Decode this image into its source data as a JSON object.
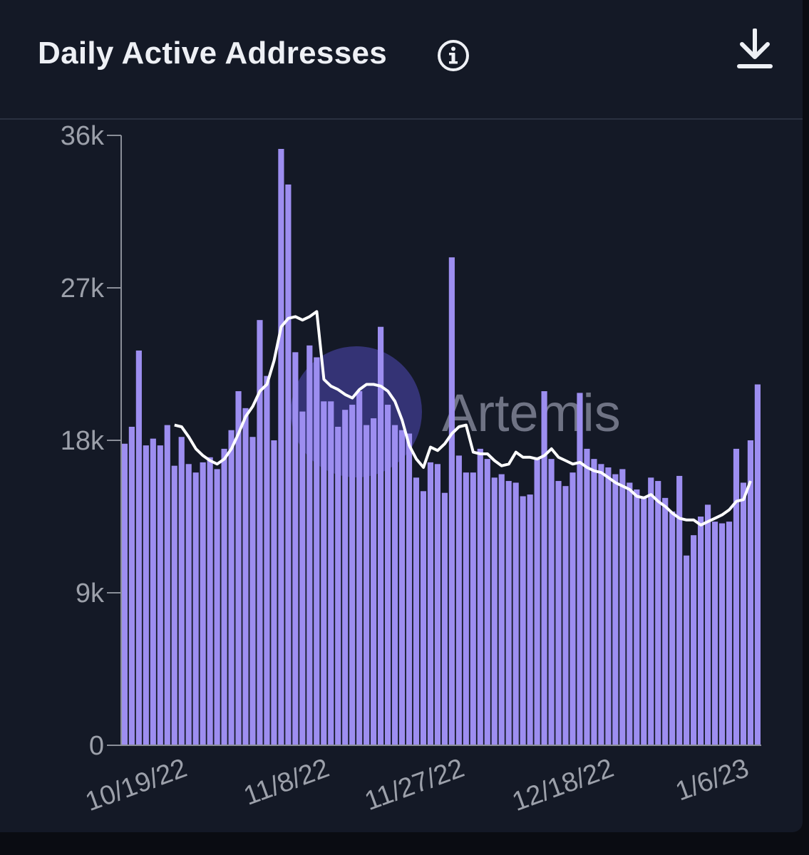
{
  "header": {
    "title": "Daily Active Addresses",
    "info_icon": "info-circle-icon",
    "download_icon": "download-icon"
  },
  "watermark": {
    "text": "Artemis"
  },
  "colors": {
    "bar": "#9d8ef0",
    "line": "#ffffff",
    "background": "#141926",
    "axis": "#8a8e98"
  },
  "chart_data": {
    "type": "bar",
    "title": "Daily Active Addresses",
    "ylim": [
      0,
      36000
    ],
    "yticks": [
      {
        "value": 0,
        "label": "0"
      },
      {
        "value": 9000,
        "label": "9k"
      },
      {
        "value": 18000,
        "label": "18k"
      },
      {
        "value": 27000,
        "label": "27k"
      },
      {
        "value": 36000,
        "label": "36k"
      }
    ],
    "xticks": [
      {
        "value": "10/19/22",
        "label": "10/19/22"
      },
      {
        "value": "11/8/22",
        "label": "11/8/22"
      },
      {
        "value": "11/27/22",
        "label": "11/27/22"
      },
      {
        "value": "12/18/22",
        "label": "12/18/22"
      },
      {
        "value": "1/6/23",
        "label": "1/6/23"
      }
    ],
    "grid": false,
    "legend": "none",
    "x": [
      "10/10/22",
      "10/11/22",
      "10/12/22",
      "10/13/22",
      "10/14/22",
      "10/15/22",
      "10/16/22",
      "10/17/22",
      "10/18/22",
      "10/19/22",
      "10/20/22",
      "10/21/22",
      "10/22/22",
      "10/23/22",
      "10/24/22",
      "10/25/22",
      "10/26/22",
      "10/27/22",
      "10/28/22",
      "10/29/22",
      "10/30/22",
      "10/31/22",
      "11/1/22",
      "11/2/22",
      "11/3/22",
      "11/4/22",
      "11/5/22",
      "11/6/22",
      "11/7/22",
      "11/8/22",
      "11/9/22",
      "11/10/22",
      "11/11/22",
      "11/12/22",
      "11/13/22",
      "11/14/22",
      "11/15/22",
      "11/16/22",
      "11/17/22",
      "11/18/22",
      "11/19/22",
      "11/20/22",
      "11/21/22",
      "11/22/22",
      "11/23/22",
      "11/24/22",
      "11/25/22",
      "11/26/22",
      "11/27/22",
      "11/28/22",
      "11/29/22",
      "11/30/22",
      "12/1/22",
      "12/2/22",
      "12/3/22",
      "12/4/22",
      "12/5/22",
      "12/6/22",
      "12/7/22",
      "12/8/22",
      "12/9/22",
      "12/10/22",
      "12/11/22",
      "12/12/22",
      "12/13/22",
      "12/14/22",
      "12/15/22",
      "12/16/22",
      "12/17/22",
      "12/18/22",
      "12/19/22",
      "12/20/22",
      "12/21/22",
      "12/22/22",
      "12/23/22",
      "12/24/22",
      "12/25/22",
      "12/26/22",
      "12/27/22",
      "12/28/22",
      "12/29/22",
      "12/30/22",
      "12/31/22",
      "1/1/23",
      "1/2/23",
      "1/3/23",
      "1/4/23",
      "1/5/23",
      "1/6/23",
      "1/7/23"
    ],
    "series": [
      {
        "type": "bar",
        "values": [
          17800,
          18800,
          23300,
          17700,
          18100,
          17700,
          18900,
          16500,
          18200,
          16600,
          16100,
          16700,
          17000,
          16300,
          17500,
          18600,
          20900,
          19900,
          18200,
          25100,
          21800,
          18000,
          35200,
          33100,
          23200,
          19700,
          23600,
          22900,
          20300,
          20300,
          18800,
          19800,
          20100,
          20900,
          18900,
          19300,
          24700,
          20100,
          18900,
          18600,
          18400,
          15800,
          15000,
          16700,
          16600,
          14900,
          28800,
          17100,
          16100,
          16100,
          17500,
          16900,
          15800,
          16000,
          15600,
          15500,
          14700,
          14800,
          17000,
          20900,
          16900,
          15600,
          15300,
          16100,
          20800,
          17500,
          16900,
          16600,
          16400,
          16000,
          16300,
          15500,
          15100,
          14600,
          15800,
          15600,
          14600,
          13800,
          15900,
          11200,
          12400,
          13500,
          14200,
          13200,
          13100,
          13200,
          17500,
          15500,
          18000,
          21300
        ]
      },
      {
        "type": "line",
        "values": [
          null,
          null,
          null,
          null,
          null,
          null,
          null,
          18900,
          18800,
          18200,
          17500,
          17100,
          16800,
          16600,
          16900,
          17500,
          18400,
          19400,
          20000,
          20900,
          21300,
          22700,
          24700,
          25200,
          25300,
          25100,
          25300,
          25600,
          21600,
          21200,
          21000,
          20700,
          20500,
          21000,
          21300,
          21300,
          21200,
          20900,
          20300,
          19200,
          17700,
          16900,
          16400,
          17600,
          17400,
          17800,
          18400,
          18800,
          18900,
          17300,
          17200,
          17200,
          16800,
          16500,
          16600,
          17300,
          17000,
          17000,
          16900,
          17100,
          17500,
          17000,
          16800,
          16600,
          16700,
          16400,
          16200,
          16100,
          15800,
          15500,
          15300,
          15100,
          14700,
          14600,
          14800,
          14400,
          14100,
          13700,
          13400,
          13300,
          13300,
          13000,
          13200,
          13400,
          13600,
          13900,
          14400,
          14500,
          15600,
          null
        ]
      }
    ]
  }
}
